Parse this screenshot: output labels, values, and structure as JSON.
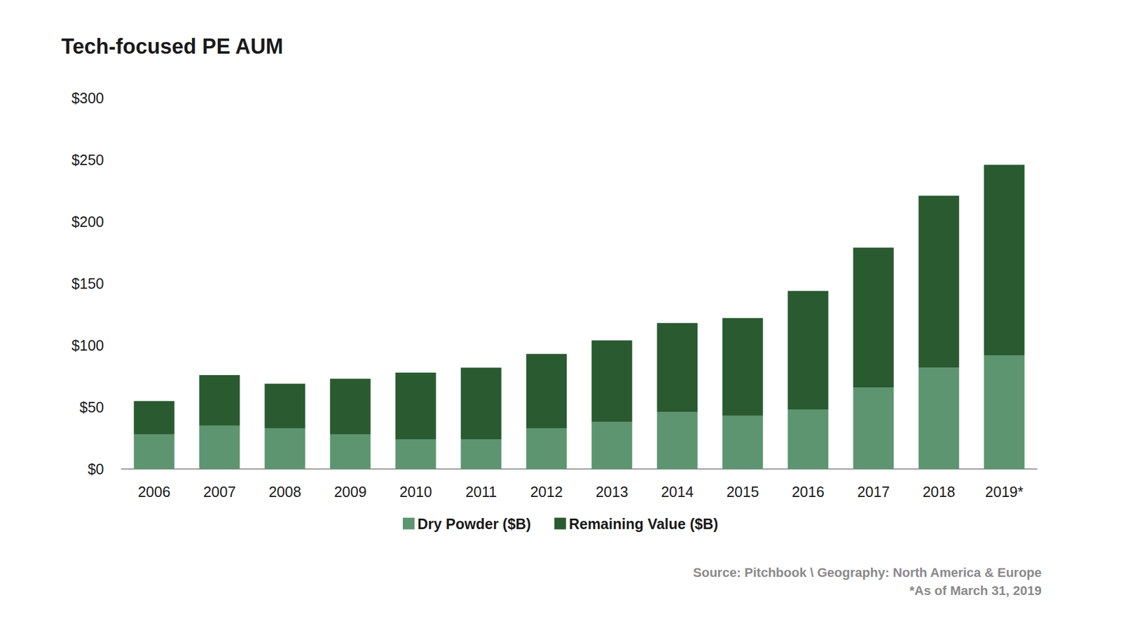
{
  "chart_data": {
    "type": "bar",
    "title": "Tech-focused PE AUM",
    "categories": [
      "2006",
      "2007",
      "2008",
      "2009",
      "2010",
      "2011",
      "2012",
      "2013",
      "2014",
      "2015",
      "2016",
      "2017",
      "2018",
      "2019*"
    ],
    "series": [
      {
        "name": "Dry Powder ($B)",
        "color": "#5c9570",
        "values": [
          28,
          35,
          33,
          28,
          24,
          24,
          33,
          38,
          46,
          43,
          48,
          66,
          82,
          92
        ]
      },
      {
        "name": "Remaining Value ($B)",
        "color": "#2a5a30",
        "values": [
          27,
          41,
          36,
          45,
          54,
          58,
          60,
          66,
          72,
          79,
          96,
          113,
          139,
          154
        ]
      }
    ],
    "stacked": true,
    "ylim": [
      0,
      300
    ],
    "yticks": [
      {
        "value": 0,
        "label": "$0"
      },
      {
        "value": 50,
        "label": "$50"
      },
      {
        "value": 100,
        "label": "$100"
      },
      {
        "value": 150,
        "label": "$150"
      },
      {
        "value": 200,
        "label": "$200"
      },
      {
        "value": 250,
        "label": "$250"
      },
      {
        "value": 300,
        "label": "$300"
      }
    ],
    "grid": false,
    "legend": "bottom",
    "annotations": [
      "Source: Pitchbook \\ Geography: North America & Europe",
      "*As of March 31, 2019"
    ]
  }
}
